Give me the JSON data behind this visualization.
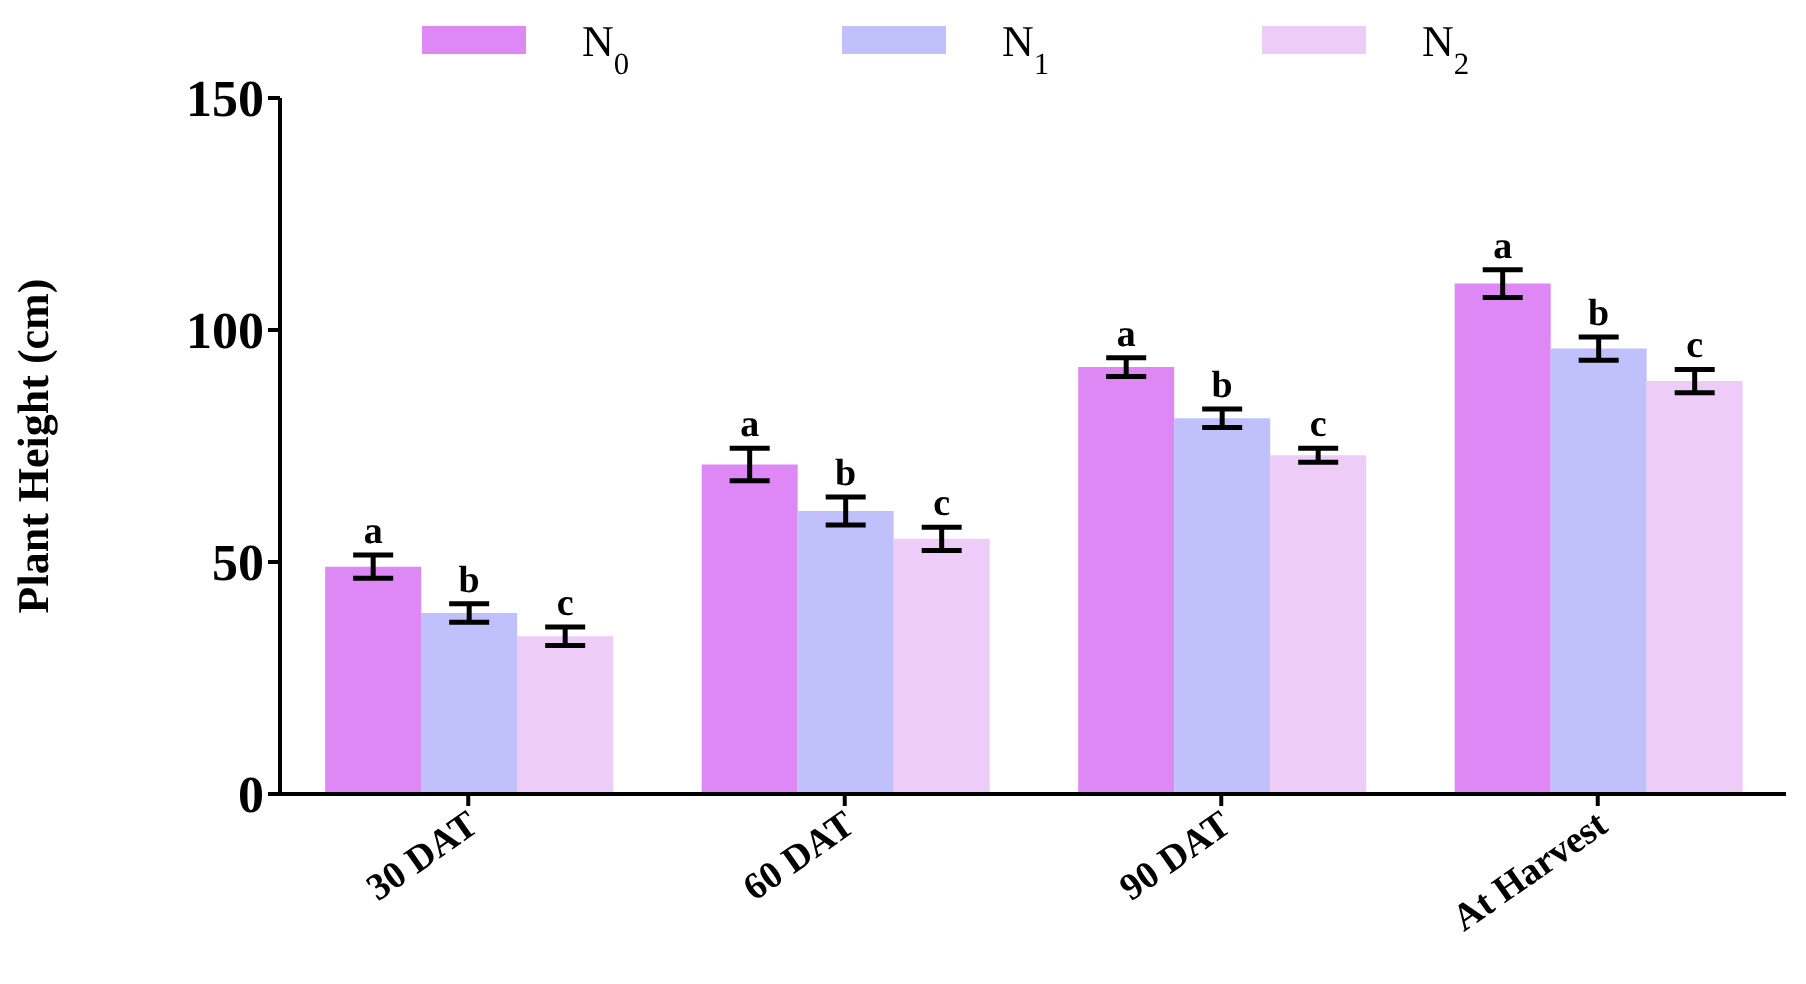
{
  "chart_data": {
    "type": "bar",
    "ylabel": "Plant Height (cm)",
    "categories": [
      "30 DAT",
      "60 DAT",
      "90 DAT",
      "At Harvest"
    ],
    "series": [
      {
        "name": "N$_{0}$",
        "color": "#dd88f5",
        "values": [
          49,
          71,
          92,
          110
        ],
        "errors": [
          2.5,
          3.5,
          2,
          3
        ]
      },
      {
        "name": "N$_{1}$",
        "color": "#c0c0fc",
        "values": [
          39,
          61,
          81,
          96
        ],
        "errors": [
          2,
          3,
          2,
          2.5
        ]
      },
      {
        "name": "N$_{2}$",
        "color": "#edccf7",
        "values": [
          34,
          55,
          73,
          89
        ],
        "errors": [
          2,
          2.5,
          1.5,
          2.5
        ]
      }
    ],
    "ylim": [
      0,
      150
    ],
    "yticks": [
      0,
      50,
      100,
      150
    ],
    "grid": false,
    "legend": "top",
    "annotations": [
      "a",
      "b",
      "c",
      "a",
      "b",
      "c",
      "a",
      "b",
      "c",
      "a",
      "b",
      "c"
    ]
  }
}
